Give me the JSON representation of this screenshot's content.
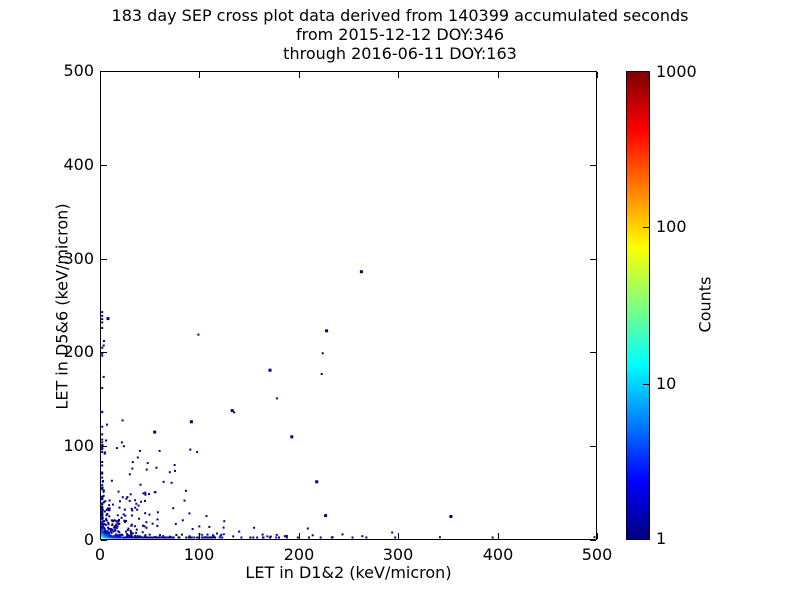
{
  "title": {
    "line1": "183 day SEP cross plot data derived from 140399 accumulated seconds",
    "line2": "from 2015-12-12 DOY:346",
    "line3": "through 2016-06-11 DOY:163"
  },
  "axes": {
    "xlabel": "LET in D1&2 (keV/micron)",
    "ylabel": "LET in D5&6 (keV/micron)",
    "xlim": [
      0,
      500
    ],
    "ylim": [
      0,
      500
    ],
    "x_ticks": [
      0,
      100,
      200,
      300,
      400,
      500
    ],
    "y_ticks": [
      0,
      100,
      200,
      300,
      400,
      500
    ]
  },
  "colorbar": {
    "label": "Counts",
    "scale": "log",
    "range": [
      1,
      1000
    ],
    "ticks": [
      1,
      10,
      100,
      1000
    ],
    "colormap": "jet",
    "color_low": "#000080",
    "color_10": "#00d4ff",
    "color_100": "#ffff00",
    "color_high": "#800000"
  },
  "chart_data": {
    "type": "scatter",
    "title": "183 day SEP cross plot data derived from 140399 accumulated seconds",
    "xlabel": "LET in D1&2 (keV/micron)",
    "ylabel": "LET in D5&6 (keV/micron)",
    "xlim": [
      0,
      500
    ],
    "ylim": [
      0,
      500
    ],
    "color_scale": "log counts 1-1000, jet colormap",
    "point_color_single_count": "#000080",
    "hot_pixels": [
      [
        0.8,
        0.8,
        90
      ],
      [
        2,
        0.8,
        45
      ],
      [
        0.8,
        2,
        35
      ],
      [
        3.2,
        0.8,
        20
      ],
      [
        0.8,
        3.5,
        15
      ],
      [
        2.2,
        2.2,
        18
      ],
      [
        4.5,
        1,
        12
      ],
      [
        1,
        4.8,
        10
      ],
      [
        6,
        1.5,
        8
      ],
      [
        1.5,
        6.5,
        7
      ],
      [
        3.5,
        3.5,
        9
      ],
      [
        5,
        4,
        6
      ],
      [
        4,
        6,
        5
      ],
      [
        8,
        2,
        6
      ],
      [
        2,
        8,
        5
      ],
      [
        10,
        1,
        5
      ],
      [
        1,
        10,
        4
      ],
      [
        12,
        2,
        4
      ],
      [
        2,
        12,
        3
      ],
      [
        7,
        5,
        4
      ],
      [
        5,
        7,
        3
      ],
      [
        15,
        1,
        4
      ],
      [
        1,
        15,
        3
      ],
      [
        9,
        7,
        3
      ],
      [
        14,
        4,
        3
      ],
      [
        4,
        13,
        2
      ],
      [
        18,
        2,
        3
      ],
      [
        2,
        18,
        2
      ],
      [
        22,
        1,
        3
      ],
      [
        1,
        22,
        2
      ],
      [
        11,
        9,
        2
      ],
      [
        16,
        6,
        2
      ],
      [
        6,
        16,
        2
      ],
      [
        20,
        4,
        2
      ],
      [
        26,
        2,
        2
      ],
      [
        2,
        26,
        2
      ],
      [
        30,
        1,
        2
      ],
      [
        1,
        30,
        1
      ]
    ],
    "outlier_points": [
      [
        263,
        286,
        1,
        1
      ],
      [
        228,
        223,
        1,
        1
      ],
      [
        224,
        199
      ],
      [
        223,
        177
      ],
      [
        171,
        181,
        1,
        1
      ],
      [
        178,
        151
      ],
      [
        193,
        110,
        1,
        1
      ],
      [
        99,
        219
      ],
      [
        135,
        136
      ],
      [
        133,
        138,
        1,
        1
      ],
      [
        218,
        62,
        1,
        1
      ],
      [
        227,
        26,
        1,
        1
      ],
      [
        353,
        25,
        1,
        1
      ],
      [
        92,
        126,
        1,
        1
      ],
      [
        55,
        115,
        1,
        1
      ],
      [
        22,
        104
      ],
      [
        24,
        100
      ],
      [
        17,
        98
      ],
      [
        7,
        123
      ],
      [
        33,
        83
      ],
      [
        48,
        82
      ],
      [
        64,
        62
      ],
      [
        72,
        61
      ],
      [
        294,
        8
      ],
      [
        297,
        2
      ],
      [
        342,
        3
      ],
      [
        395,
        2
      ],
      [
        498,
        3
      ],
      [
        0,
        243
      ],
      [
        1,
        239
      ],
      [
        8,
        236,
        1,
        1
      ],
      [
        0,
        232
      ],
      [
        2,
        226
      ],
      [
        4,
        212
      ],
      [
        0,
        205
      ],
      [
        1,
        199
      ],
      [
        0,
        162
      ],
      [
        38,
        88
      ],
      [
        47,
        75
      ],
      [
        30,
        70
      ],
      [
        85,
        42
      ],
      [
        110,
        14
      ],
      [
        125,
        20
      ],
      [
        140,
        9
      ],
      [
        155,
        13
      ],
      [
        60,
        95
      ],
      [
        75,
        80
      ],
      [
        186,
        4
      ],
      [
        199,
        2
      ],
      [
        214,
        5
      ],
      [
        234,
        3
      ],
      [
        244,
        6
      ],
      [
        254,
        2
      ],
      [
        264,
        4
      ],
      [
        268,
        2
      ]
    ],
    "cluster_spec": {
      "seed": 1337,
      "x_axis_strip": {
        "n": 230,
        "x_scale": 60,
        "x_max": 270,
        "y_scale": 2.2
      },
      "y_axis_strip": {
        "n": 100,
        "y_scale": 45,
        "y_max": 245,
        "x_scale": 1.4
      },
      "diagonal_ridge": {
        "n": 60,
        "d_scale": 28,
        "d_max": 100,
        "spread": 5
      },
      "triangle_speckle": {
        "n": 140,
        "x_scale": 26,
        "y_scale": 26,
        "max": 130
      }
    }
  }
}
